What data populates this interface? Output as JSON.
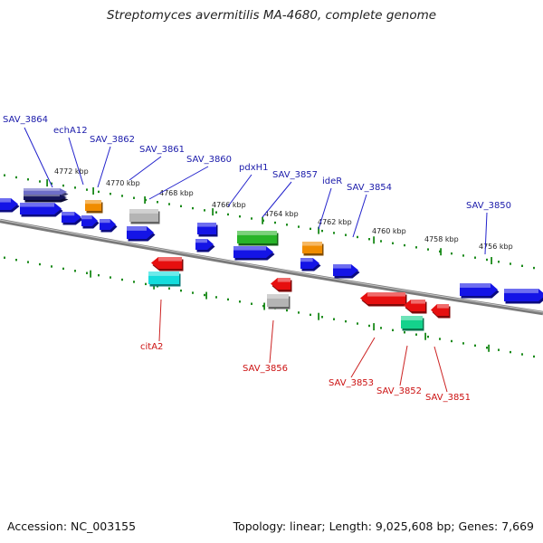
{
  "title": "Streptomyces avermitilis MA-4680, complete genome",
  "footer": {
    "accession": "Accession: NC_003155",
    "summary": "Topology: linear; Length: 9,025,608 bp; Genes: 7,669"
  },
  "colors": {
    "forward_label": "#1a1aaa",
    "reverse_label": "#cc1111",
    "blue": "#1414e6",
    "red": "#e60f0f",
    "orange": "#f08c00",
    "gray": "#b4b4b4",
    "green": "#28b428",
    "cyan": "#14dcdc",
    "navy": "#14145a",
    "purple": "#6e6ec8",
    "seagreen": "#14d28c",
    "backbone": "#808080",
    "tick": "#1a8a1a"
  },
  "kbp_marks": [
    "4772 kbp",
    "4770 kbp",
    "4768 kbp",
    "4766 kbp",
    "4764 kbp",
    "4762 kbp",
    "4760 kbp",
    "4758 kbp",
    "4756 kbp"
  ],
  "forward_labels": [
    "SAV_3864",
    "echA12",
    "SAV_3862",
    "SAV_3861",
    "SAV_3860",
    "pdxH1",
    "SAV_3857",
    "ideR",
    "SAV_3854",
    "SAV_3850"
  ],
  "reverse_labels": [
    "citA2",
    "SAV_3856",
    "SAV_3853",
    "SAV_3852",
    "SAV_3851"
  ]
}
